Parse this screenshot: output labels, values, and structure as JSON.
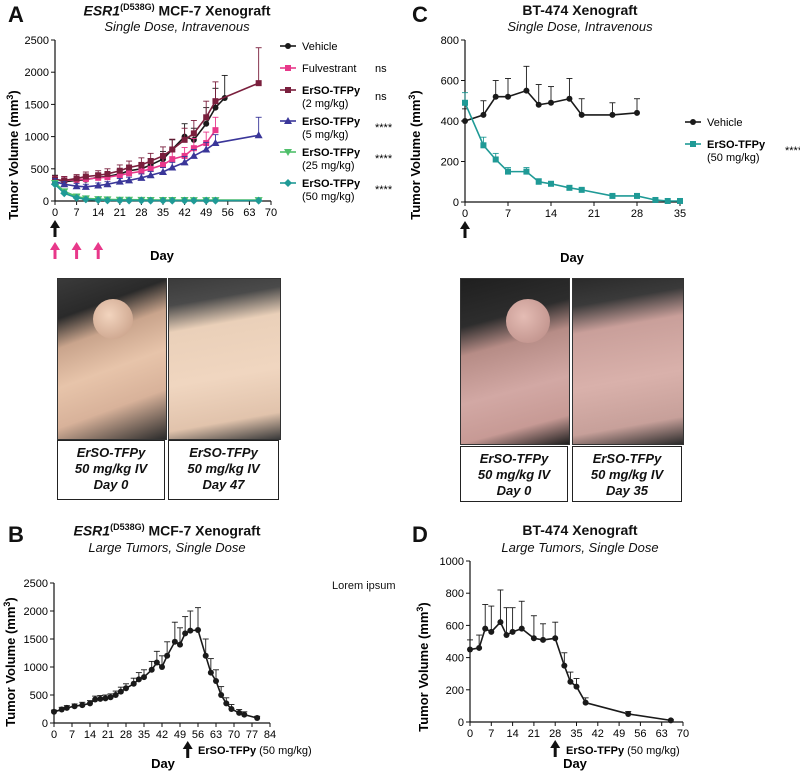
{
  "panels": {
    "A": {
      "letter": "A",
      "title_gene": "ESR1",
      "title_mut": "(D538G)",
      "title_rest": " MCF-7 Xenograft",
      "subtitle": "Single Dose, Intravenous",
      "ylabel": "Tumor Volume (mm",
      "ylabel_sup": "3",
      "xlabel": "Day",
      "photo_captions": [
        [
          "ErSO-TFPy",
          "50 mg/kg IV",
          "Day 0"
        ],
        [
          "ErSO-TFPy",
          "50 mg/kg IV",
          "Day 47"
        ]
      ]
    },
    "B": {
      "letter": "B",
      "title_gene": "ESR1",
      "title_mut": "(D538G)",
      "title_rest": " MCF-7 Xenograft",
      "subtitle": "Large Tumors, Single Dose",
      "ylabel": "Tumor Volume (mm",
      "ylabel_sup": "3",
      "xlabel": "Day",
      "dose_label_bold": "ErSO-TFPy",
      "dose_label_rest": " (50 mg/kg)"
    },
    "C": {
      "letter": "C",
      "title": "BT-474 Xenograft",
      "subtitle": "Single Dose, Intravenous",
      "ylabel": "Tumor  Volume (mm",
      "ylabel_sup": "3",
      "xlabel": "Day",
      "photo_captions": [
        [
          "ErSO-TFPy",
          "50 mg/kg IV",
          "Day 0"
        ],
        [
          "ErSO-TFPy",
          "50 mg/kg IV",
          "Day 35"
        ]
      ]
    },
    "D": {
      "letter": "D",
      "title": "BT-474 Xenograft",
      "subtitle": "Large Tumors, Single Dose",
      "ylabel": "Tumor Volume (mm",
      "ylabel_sup": "3",
      "xlabel": "Day",
      "dose_label_bold": "ErSO-TFPy",
      "dose_label_rest": " (50 mg/kg)"
    }
  },
  "note": "Lorem ipsum",
  "chart_data": [
    {
      "id": "A",
      "type": "line",
      "title": "ESR1(D538G) MCF-7 Xenograft",
      "subtitle": "Single Dose, Intravenous",
      "xlabel": "Day",
      "ylabel": "Tumor Volume (mm3)",
      "xlim": [
        0,
        70
      ],
      "ylim": [
        0,
        2500
      ],
      "xticks": [
        0,
        7,
        14,
        21,
        28,
        35,
        42,
        49,
        56,
        63,
        70
      ],
      "yticks": [
        0,
        500,
        1000,
        1500,
        2000,
        2500
      ],
      "dose_days_black": [
        0
      ],
      "dose_days_pink": [
        0,
        7,
        14
      ],
      "legend_position": "right",
      "series": [
        {
          "name": "Vehicle",
          "label_lines": [
            "Vehicle"
          ],
          "bold": false,
          "color": "#1a1a1a",
          "marker": "circle",
          "sig": "",
          "x": [
            0,
            3,
            7,
            10,
            14,
            17,
            21,
            24,
            28,
            31,
            35,
            38,
            42,
            45,
            49,
            52,
            55
          ],
          "y": [
            340,
            300,
            320,
            330,
            370,
            380,
            420,
            470,
            500,
            560,
            650,
            800,
            1000,
            950,
            1200,
            1450,
            1600
          ],
          "err": [
            60,
            50,
            50,
            50,
            60,
            60,
            70,
            80,
            90,
            100,
            120,
            150,
            200,
            180,
            250,
            300,
            350
          ]
        },
        {
          "name": "Fulvestrant",
          "label_lines": [
            "Fulvestrant"
          ],
          "bold": false,
          "color": "#e8388a",
          "marker": "square",
          "sig": "ns",
          "x": [
            0,
            3,
            7,
            10,
            14,
            17,
            21,
            24,
            28,
            31,
            35,
            38,
            42,
            45,
            49,
            52
          ],
          "y": [
            330,
            320,
            330,
            340,
            360,
            370,
            400,
            430,
            460,
            500,
            560,
            650,
            700,
            820,
            900,
            1100
          ],
          "err": [
            60,
            60,
            60,
            60,
            60,
            70,
            80,
            80,
            90,
            100,
            110,
            120,
            130,
            150,
            170,
            200
          ]
        },
        {
          "name": "ErSO-TFPy (2 mg/kg)",
          "label_lines": [
            "ErSO-TFPy",
            "(2 mg/kg)"
          ],
          "bold": true,
          "color": "#7a1f3d",
          "marker": "square",
          "sig": "ns",
          "x": [
            0,
            3,
            7,
            10,
            14,
            17,
            21,
            24,
            28,
            31,
            35,
            38,
            42,
            45,
            49,
            52,
            66
          ],
          "y": [
            330,
            320,
            350,
            380,
            400,
            420,
            470,
            520,
            560,
            620,
            700,
            800,
            950,
            1050,
            1300,
            1550,
            1830
          ],
          "err": [
            60,
            60,
            60,
            70,
            70,
            80,
            90,
            100,
            110,
            120,
            140,
            160,
            180,
            200,
            250,
            300,
            550
          ]
        },
        {
          "name": "ErSO-TFPy (5 mg/kg)",
          "label_lines": [
            "ErSO-TFPy",
            "(5 mg/kg)"
          ],
          "bold": true,
          "color": "#3a3699",
          "marker": "triangle",
          "sig": "****",
          "x": [
            0,
            3,
            7,
            10,
            14,
            17,
            21,
            24,
            28,
            31,
            35,
            38,
            42,
            45,
            49,
            52,
            66
          ],
          "y": [
            300,
            260,
            230,
            220,
            240,
            260,
            300,
            320,
            360,
            400,
            450,
            520,
            600,
            700,
            800,
            900,
            1020
          ],
          "err": [
            50,
            40,
            40,
            40,
            40,
            40,
            50,
            50,
            60,
            60,
            70,
            80,
            90,
            100,
            110,
            130,
            280
          ]
        },
        {
          "name": "ErSO-TFPy (25 mg/kg)",
          "label_lines": [
            "ErSO-TFPy",
            "(25 mg/kg)"
          ],
          "bold": true,
          "color": "#4fbf6a",
          "marker": "triangle-down",
          "sig": "****",
          "x": [
            0,
            3,
            7,
            10,
            14,
            17,
            21,
            24,
            28,
            31,
            35,
            38,
            42,
            45,
            49,
            52,
            66
          ],
          "y": [
            280,
            150,
            70,
            40,
            30,
            25,
            20,
            20,
            18,
            16,
            15,
            15,
            15,
            14,
            14,
            14,
            14
          ],
          "err": [
            40,
            30,
            20,
            10,
            10,
            8,
            8,
            8,
            6,
            6,
            6,
            6,
            6,
            6,
            6,
            6,
            6
          ]
        },
        {
          "name": "ErSO-TFPy (50 mg/kg)",
          "label_lines": [
            "ErSO-TFPy",
            "(50 mg/kg)"
          ],
          "bold": true,
          "color": "#1f9a96",
          "marker": "diamond",
          "sig": "****",
          "x": [
            0,
            3,
            7,
            10,
            14,
            17,
            21,
            24,
            28,
            31,
            35,
            38,
            42,
            45,
            49,
            52,
            66
          ],
          "y": [
            260,
            120,
            50,
            25,
            15,
            10,
            8,
            8,
            7,
            6,
            6,
            6,
            6,
            6,
            6,
            6,
            6
          ],
          "err": [
            40,
            30,
            15,
            8,
            5,
            4,
            3,
            3,
            3,
            3,
            3,
            3,
            3,
            3,
            3,
            3,
            3
          ]
        }
      ]
    },
    {
      "id": "B",
      "type": "line",
      "title": "ESR1(D538G) MCF-7 Xenograft",
      "subtitle": "Large Tumors, Single Dose",
      "xlabel": "Day",
      "ylabel": "Tumor Volume (mm3)",
      "xlim": [
        0,
        84
      ],
      "ylim": [
        0,
        2500
      ],
      "xticks": [
        0,
        7,
        14,
        21,
        28,
        35,
        42,
        49,
        56,
        63,
        70,
        77,
        84
      ],
      "yticks": [
        0,
        500,
        1000,
        1500,
        2000,
        2500
      ],
      "dose_day": 52,
      "dose_label": "ErSO-TFPy (50 mg/kg)",
      "series": [
        {
          "name": "",
          "color": "#1a1a1a",
          "marker": "circle",
          "x": [
            0,
            3,
            5,
            8,
            11,
            14,
            16,
            18,
            20,
            22,
            24,
            26,
            28,
            31,
            33,
            35,
            38,
            40,
            42,
            44,
            47,
            49,
            51,
            53,
            56,
            59,
            61,
            63,
            65,
            67,
            69,
            72,
            74,
            79
          ],
          "y": [
            200,
            240,
            270,
            300,
            320,
            350,
            420,
            430,
            440,
            460,
            500,
            560,
            620,
            700,
            780,
            820,
            950,
            1080,
            1000,
            1200,
            1450,
            1400,
            1600,
            1650,
            1660,
            1200,
            900,
            750,
            500,
            350,
            250,
            180,
            150,
            90
          ],
          "err": [
            30,
            40,
            40,
            40,
            50,
            50,
            60,
            60,
            60,
            60,
            70,
            80,
            80,
            100,
            120,
            130,
            150,
            200,
            200,
            250,
            350,
            300,
            300,
            350,
            400,
            300,
            250,
            200,
            150,
            100,
            80,
            60,
            50,
            30
          ]
        }
      ]
    },
    {
      "id": "C",
      "type": "line",
      "title": "BT-474 Xenograft",
      "subtitle": "Single Dose, Intravenous",
      "xlabel": "Day",
      "ylabel": "Tumor Volume (mm3)",
      "xlim": [
        0,
        35
      ],
      "ylim": [
        0,
        800
      ],
      "xticks": [
        0,
        7,
        14,
        21,
        28,
        35
      ],
      "yticks": [
        0,
        200,
        400,
        600,
        800
      ],
      "dose_days_black": [
        0
      ],
      "legend_position": "right",
      "series": [
        {
          "name": "Vehicle",
          "label_lines": [
            "Vehicle"
          ],
          "bold": false,
          "color": "#1a1a1a",
          "marker": "circle",
          "sig": "",
          "x": [
            0,
            3,
            5,
            7,
            10,
            12,
            14,
            17,
            19,
            24,
            28
          ],
          "y": [
            400,
            430,
            520,
            520,
            550,
            480,
            490,
            510,
            430,
            430,
            440
          ],
          "err": [
            60,
            70,
            80,
            90,
            120,
            100,
            80,
            100,
            80,
            60,
            70
          ]
        },
        {
          "name": "ErSO-TFPy (50 mg/kg)",
          "label_lines": [
            "ErSO-TFPy",
            "(50 mg/kg)"
          ],
          "bold": true,
          "color": "#1f9a96",
          "marker": "square",
          "sig": "****",
          "x": [
            0,
            3,
            5,
            7,
            10,
            12,
            14,
            17,
            19,
            24,
            28,
            31,
            33,
            35
          ],
          "y": [
            490,
            280,
            210,
            150,
            150,
            100,
            90,
            70,
            60,
            30,
            30,
            10,
            5,
            5
          ],
          "err": [
            50,
            40,
            30,
            20,
            20,
            15,
            10,
            10,
            8,
            6,
            5,
            4,
            3,
            3
          ]
        }
      ]
    },
    {
      "id": "D",
      "type": "line",
      "title": "BT-474 Xenograft",
      "subtitle": "Large Tumors, Single Dose",
      "xlabel": "Day",
      "ylabel": "Tumor Volume (mm3)",
      "xlim": [
        0,
        70
      ],
      "ylim": [
        0,
        1000
      ],
      "xticks": [
        0,
        7,
        14,
        21,
        28,
        35,
        42,
        49,
        56,
        63,
        70
      ],
      "yticks": [
        0,
        200,
        400,
        600,
        800,
        1000
      ],
      "dose_day": 28,
      "dose_label": "ErSO-TFPy (50 mg/kg)",
      "series": [
        {
          "name": "",
          "color": "#1a1a1a",
          "marker": "circle",
          "x": [
            0,
            3,
            5,
            7,
            10,
            12,
            14,
            17,
            21,
            24,
            28,
            31,
            33,
            35,
            38,
            52,
            66
          ],
          "y": [
            450,
            460,
            580,
            560,
            620,
            540,
            560,
            580,
            520,
            510,
            520,
            350,
            250,
            220,
            120,
            50,
            10
          ],
          "err": [
            60,
            80,
            150,
            160,
            200,
            170,
            150,
            170,
            140,
            100,
            100,
            80,
            60,
            50,
            30,
            15,
            5
          ]
        }
      ]
    }
  ]
}
